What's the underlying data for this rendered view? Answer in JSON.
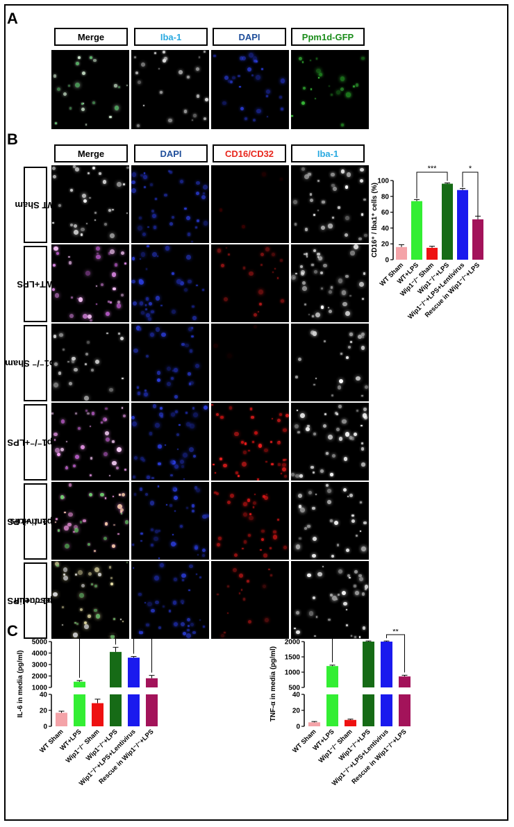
{
  "panel_labels": {
    "a": "A",
    "b": "B",
    "c": "C"
  },
  "panelA": {
    "headers": [
      {
        "label": "Merge",
        "color": "#000000"
      },
      {
        "label": "Iba-1",
        "color": "#29a9e0"
      },
      {
        "label": "DAPI",
        "color": "#1f4e9a"
      },
      {
        "label": "Ppm1d-GFP",
        "color": "#1a8c1a"
      }
    ]
  },
  "panelB": {
    "headers": [
      {
        "label": "Merge",
        "color": "#000000"
      },
      {
        "label": "DAPI",
        "color": "#1f4e9a"
      },
      {
        "label": "CD16/CD32",
        "color": "#e8261c"
      },
      {
        "label": "Iba-1",
        "color": "#29a9e0"
      }
    ],
    "rows": [
      {
        "line1": "WT Sham",
        "line2": ""
      },
      {
        "line1": "WT+LPS",
        "line2": ""
      },
      {
        "line1": "Wip1⁻/⁻ Sham",
        "line2": ""
      },
      {
        "line1": "Wip1⁻/⁻+LPS",
        "line2": ""
      },
      {
        "line1": "Wip1⁻/⁻+LPS",
        "line2": "+ Lentivirus"
      },
      {
        "line1": "Rescue in",
        "line2": "Wip1⁻/⁻+LPS"
      }
    ]
  },
  "chart_data": [
    {
      "type": "bar",
      "ylabel": "CD16⁺ / Iba1⁺ cells (%)",
      "categories": [
        "WT Sham",
        "WT+LPS",
        "Wip1⁻/⁻ Sham",
        "Wip1⁻/⁻+LPS",
        "Wip1⁻/⁻+LPS+Lentivirus",
        "Rescue in Wip1⁻/⁻+LPS"
      ],
      "values": [
        16,
        74,
        15,
        96,
        88,
        51
      ],
      "errors": [
        3,
        2,
        2,
        1,
        2,
        4
      ],
      "colors": [
        "#f4a3a8",
        "#33ee33",
        "#ee1111",
        "#166b16",
        "#1a1aee",
        "#a3135a"
      ],
      "ylim": [
        0,
        100
      ],
      "yticks": [
        "0",
        "20",
        "40",
        "60",
        "80",
        "100"
      ],
      "significance": [
        {
          "from": 1,
          "to": 3,
          "label": "***"
        },
        {
          "from": 4,
          "to": 5,
          "label": "*"
        }
      ]
    },
    {
      "type": "bar",
      "ylabel": "IL-6 in media (pg/ml)",
      "categories": [
        "WT Sham",
        "WT+LPS",
        "Wip1⁻/⁻ Sham",
        "Wip1⁻/⁻+LPS",
        "Wip1⁻/⁻+LPS+Lentivirus",
        "Rescue in Wip1⁻/⁻+LPS"
      ],
      "values": [
        17,
        1500,
        29,
        4100,
        3600,
        1800
      ],
      "errors": [
        2,
        100,
        5,
        400,
        100,
        250
      ],
      "colors": [
        "#f4a3a8",
        "#33ee33",
        "#ee1111",
        "#166b16",
        "#1a1aee",
        "#a3135a"
      ],
      "axis_break": {
        "lower": [
          0,
          40
        ],
        "upper": [
          1000,
          5000
        ]
      },
      "yticks_lower": [
        "0",
        "20",
        "40"
      ],
      "yticks_upper": [
        "1000",
        "2000",
        "3000",
        "4000",
        "5000"
      ],
      "significance": [
        {
          "from": 1,
          "to": 3,
          "label": "***"
        },
        {
          "from": 4,
          "to": 5,
          "label": "**"
        }
      ]
    },
    {
      "type": "bar",
      "ylabel": "TNF-α in media (pg/ml)",
      "categories": [
        "WT Sham",
        "WT+LPS",
        "Wip1⁻/⁻ Sham",
        "Wip1⁻/⁻+LPS",
        "Wip1⁻/⁻+LPS+Lentivirus",
        "Rescue in Wip1⁻/⁻+LPS"
      ],
      "values": [
        5,
        1200,
        8,
        2000,
        2000,
        860
      ],
      "errors": [
        1,
        30,
        1,
        20,
        20,
        40
      ],
      "colors": [
        "#f4a3a8",
        "#33ee33",
        "#ee1111",
        "#166b16",
        "#1a1aee",
        "#a3135a"
      ],
      "axis_break": {
        "lower": [
          0,
          40
        ],
        "upper": [
          500,
          2000
        ]
      },
      "yticks_lower": [
        "0",
        "20",
        "40"
      ],
      "yticks_upper": [
        "500",
        "1000",
        "1500",
        "2000"
      ],
      "significance": [
        {
          "from": 1,
          "to": 3,
          "label": "**"
        },
        {
          "from": 4,
          "to": 5,
          "label": "**"
        }
      ]
    }
  ]
}
